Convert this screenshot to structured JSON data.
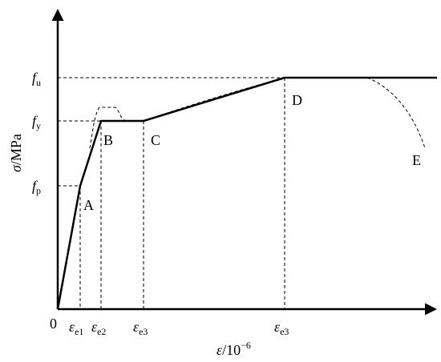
{
  "y_axis": {
    "symbol": "σ",
    "unit": "/MPa"
  },
  "x_axis": {
    "symbol": "ε",
    "unit": "/10",
    "exp": "−6"
  },
  "origin": "0",
  "y_levels": [
    {
      "symbol": "f",
      "sub": "u"
    },
    {
      "symbol": "f",
      "sub": "y"
    },
    {
      "symbol": "f",
      "sub": "p"
    }
  ],
  "x_levels": [
    {
      "symbol": "ε",
      "sub": "e1"
    },
    {
      "symbol": "ε",
      "sub": "e2"
    },
    {
      "symbol": "ε",
      "sub": "e3"
    },
    {
      "symbol": "ε",
      "sub": "e3"
    }
  ],
  "points": [
    "A",
    "B",
    "C",
    "D",
    "E"
  ]
}
